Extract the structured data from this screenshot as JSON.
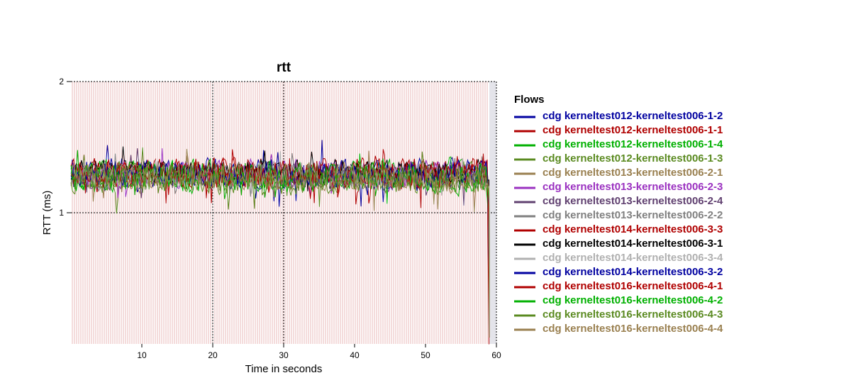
{
  "chart_data": {
    "type": "line",
    "title": "rtt",
    "xlabel": "Time in seconds",
    "ylabel": "RTT (ms)",
    "xlim": [
      0,
      60
    ],
    "ylim": [
      0,
      2
    ],
    "x_ticks": [
      10,
      20,
      30,
      40,
      50,
      60
    ],
    "y_ticks": [
      1,
      2
    ],
    "grid": true,
    "legend_title": "Flows",
    "legend_position": "right",
    "series": [
      {
        "name": "cdg kerneltest012-kerneltest006-1-2",
        "color": "#0000a0",
        "mean": 1.3,
        "spread": 0.12,
        "end_drop": [
          0.55,
          0.05
        ]
      },
      {
        "name": "cdg kerneltest012-kerneltest006-1-1",
        "color": "#b00000",
        "mean": 1.3,
        "spread": 0.12,
        "end_drop": [
          0.0,
          0.0
        ]
      },
      {
        "name": "cdg kerneltest012-kerneltest006-1-4",
        "color": "#00b000",
        "mean": 1.28,
        "spread": 0.13,
        "end_drop": [
          0.9,
          0.05
        ]
      },
      {
        "name": "cdg kerneltest012-kerneltest006-1-3",
        "color": "#5a8a20",
        "mean": 1.26,
        "spread": 0.12,
        "end_drop": [
          1.1,
          0.05
        ]
      },
      {
        "name": "cdg kerneltest013-kerneltest006-2-1",
        "color": "#9a8050",
        "mean": 1.27,
        "spread": 0.12,
        "end_drop": [
          1.2,
          0.05
        ]
      },
      {
        "name": "cdg kerneltest013-kerneltest006-2-3",
        "color": "#9a30c0",
        "mean": 1.3,
        "spread": 0.12,
        "end_drop": [
          0.7,
          0.05
        ]
      },
      {
        "name": "cdg kerneltest013-kerneltest006-2-4",
        "color": "#604070",
        "mean": 1.29,
        "spread": 0.11,
        "end_drop": [
          0.65,
          0.05
        ]
      },
      {
        "name": "cdg kerneltest013-kerneltest006-2-2",
        "color": "#808080",
        "mean": 1.29,
        "spread": 0.11,
        "end_drop": [
          1.0,
          0.05
        ]
      },
      {
        "name": "cdg kerneltest014-kerneltest006-3-3",
        "color": "#b00000",
        "mean": 1.3,
        "spread": 0.12,
        "end_drop": [
          0.8,
          0.05
        ]
      },
      {
        "name": "cdg kerneltest014-kerneltest006-3-1",
        "color": "#000000",
        "mean": 1.32,
        "spread": 0.1,
        "end_drop": [
          1.25,
          0.05
        ]
      },
      {
        "name": "cdg kerneltest014-kerneltest006-3-4",
        "color": "#b0b0b0",
        "mean": 1.29,
        "spread": 0.11,
        "end_drop": [
          1.05,
          0.05
        ]
      },
      {
        "name": "cdg kerneltest014-kerneltest006-3-2",
        "color": "#0000a0",
        "mean": 1.3,
        "spread": 0.11,
        "end_drop": [
          1.0,
          0.05
        ]
      },
      {
        "name": "cdg kerneltest016-kerneltest006-4-1",
        "color": "#b00000",
        "mean": 1.3,
        "spread": 0.12,
        "end_drop": [
          0.95,
          0.05
        ]
      },
      {
        "name": "cdg kerneltest016-kerneltest006-4-2",
        "color": "#00b000",
        "mean": 1.28,
        "spread": 0.13,
        "end_drop": [
          1.1,
          0.05
        ]
      },
      {
        "name": "cdg kerneltest016-kerneltest006-4-3",
        "color": "#5a8a20",
        "mean": 1.26,
        "spread": 0.13,
        "end_drop": [
          1.15,
          0.05
        ]
      },
      {
        "name": "cdg kerneltest016-kerneltest006-4-4",
        "color": "#9a8050",
        "mean": 1.27,
        "spread": 0.12,
        "end_drop": [
          1.2,
          0.05
        ]
      }
    ]
  }
}
